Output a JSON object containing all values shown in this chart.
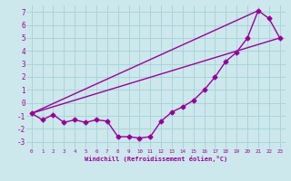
{
  "title": "",
  "xlabel": "Windchill (Refroidissement éolien,°C)",
  "ylabel": "",
  "bg_color": "#cce8ec",
  "grid_color": "#aad4d8",
  "line_color": "#990099",
  "marker": "D",
  "markersize": 2.5,
  "linewidth": 1.0,
  "xlim": [
    -0.5,
    23.5
  ],
  "ylim": [
    -3.5,
    7.5
  ],
  "xticks": [
    0,
    1,
    2,
    3,
    4,
    5,
    6,
    7,
    8,
    9,
    10,
    11,
    12,
    13,
    14,
    15,
    16,
    17,
    18,
    19,
    20,
    21,
    22,
    23
  ],
  "yticks": [
    -3,
    -2,
    -1,
    0,
    1,
    2,
    3,
    4,
    5,
    6,
    7
  ],
  "line1_x": [
    0,
    1,
    2,
    3,
    4,
    5,
    6,
    7,
    8,
    9,
    10,
    11,
    12,
    13,
    14,
    15,
    16,
    17,
    18,
    19,
    20,
    21,
    22,
    23
  ],
  "line1_y": [
    -0.8,
    -1.3,
    -0.9,
    -1.5,
    -1.3,
    -1.5,
    -1.3,
    -1.4,
    -2.6,
    -2.6,
    -2.7,
    -2.6,
    -1.4,
    -0.7,
    -0.3,
    0.2,
    1.0,
    2.0,
    3.2,
    3.9,
    5.0,
    7.1,
    6.5,
    5.0
  ],
  "straight_line_x": [
    0,
    21
  ],
  "straight_line_y": [
    -0.8,
    7.1
  ],
  "straight_line2_x": [
    0,
    23
  ],
  "straight_line2_y": [
    -0.8,
    5.0
  ]
}
